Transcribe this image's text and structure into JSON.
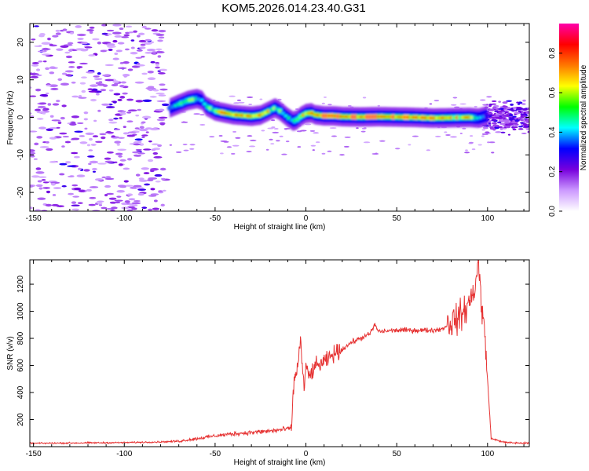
{
  "title": "KOM5.2026.014.23.40.G31",
  "chart_data": [
    {
      "type": "heatmap",
      "xlabel": "Height of straight line (km)",
      "ylabel": "Frequency (Hz)",
      "xlim": [
        -152,
        123
      ],
      "ylim": [
        -25,
        25
      ],
      "x_ticks": [
        -150,
        -100,
        -50,
        0,
        50,
        100
      ],
      "y_ticks": [
        -20,
        -10,
        0,
        10,
        20
      ],
      "colorbar": {
        "label": "Normalized spectral amplitude",
        "range": [
          0,
          0.95
        ],
        "ticks": [
          "0.0",
          "0.2",
          "0.4",
          "0.6",
          "0.8"
        ],
        "colors": [
          "#ffffff",
          "#cc99ff",
          "#7700dd",
          "#0000ff",
          "#00ffff",
          "#00ff00",
          "#ffff00",
          "#ff7700",
          "#ff0000",
          "#ff00aa"
        ]
      },
      "ridge": {
        "x": [
          -75,
          -70,
          -65,
          -60,
          -57,
          -55,
          -50,
          -45,
          -40,
          -35,
          -30,
          -25,
          -20,
          -17,
          -15,
          -12,
          -10,
          -7,
          -5,
          -3,
          0,
          3,
          5,
          10,
          15,
          20,
          30,
          40,
          50,
          60,
          70,
          80,
          90,
          95,
          100
        ],
        "y": [
          2.5,
          3.5,
          4.5,
          5.0,
          4.5,
          3.0,
          1.7,
          1.2,
          0.7,
          0.5,
          0.3,
          0.6,
          1.8,
          2.5,
          2.0,
          0.8,
          0.0,
          -1.0,
          -0.7,
          0.2,
          1.0,
          1.2,
          0.7,
          0.4,
          0.4,
          0.2,
          0.1,
          0.2,
          0.1,
          0.0,
          -0.2,
          -0.1,
          0.0,
          -0.2,
          0.5
        ],
        "amplitude": [
          0.45,
          0.55,
          0.6,
          0.58,
          0.5,
          0.55,
          0.7,
          0.85,
          0.9,
          0.92,
          0.88,
          0.8,
          0.72,
          0.65,
          0.6,
          0.55,
          0.55,
          0.5,
          0.55,
          0.7,
          0.75,
          0.85,
          0.88,
          0.9,
          0.9,
          0.88,
          0.9,
          0.9,
          0.85,
          0.82,
          0.8,
          0.78,
          0.72,
          0.6,
          0.4
        ]
      }
    },
    {
      "type": "line",
      "xlabel": "Height of straight line (km)",
      "ylabel": "SNR (v/v)",
      "xlim": [
        -152,
        123
      ],
      "ylim": [
        0,
        1380
      ],
      "x_ticks": [
        -150,
        -100,
        -50,
        0,
        50,
        100
      ],
      "y_ticks": [
        200,
        400,
        600,
        800,
        1000,
        1200
      ],
      "color": "#e63333",
      "series": [
        {
          "x": [
            -152,
            -100,
            -80,
            -70,
            -60,
            -50,
            -40,
            -30,
            -20,
            -10,
            -8,
            -7,
            -6,
            -5,
            -3,
            -1,
            0,
            2,
            5,
            10,
            15,
            20,
            25,
            30,
            35,
            38,
            40,
            50,
            60,
            70,
            75,
            80,
            85,
            90,
            93,
            95,
            97,
            98,
            100,
            102,
            110,
            123
          ],
          "y": [
            25,
            30,
            35,
            40,
            60,
            80,
            95,
            105,
            115,
            130,
            140,
            400,
            520,
            560,
            780,
            430,
            580,
            520,
            590,
            620,
            680,
            720,
            770,
            800,
            830,
            900,
            850,
            860,
            860,
            860,
            870,
            920,
            960,
            1060,
            1180,
            1360,
            1000,
            900,
            500,
            60,
            30,
            25
          ]
        }
      ]
    }
  ]
}
